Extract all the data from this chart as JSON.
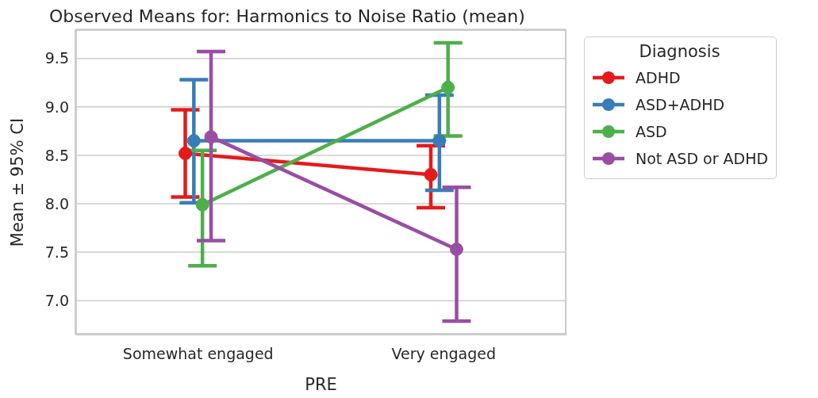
{
  "chart_data": {
    "type": "line",
    "title": "Observed Means for: Harmonics to Noise Ratio (mean)",
    "xlabel": "PRE",
    "ylabel": "Mean ± 95% CI",
    "legend_title": "Diagnosis",
    "categories": [
      "Somewhat engaged",
      "Very engaged"
    ],
    "series": [
      {
        "name": "ADHD",
        "color": "#e41a1c",
        "values": [
          8.52,
          8.3
        ],
        "errors": [
          [
            8.07,
            8.97
          ],
          [
            7.96,
            8.6
          ]
        ]
      },
      {
        "name": "ASD+ADHD",
        "color": "#377eb8",
        "values": [
          8.65,
          8.65
        ],
        "errors": [
          [
            8.01,
            9.28
          ],
          [
            8.14,
            9.12
          ]
        ]
      },
      {
        "name": "ASD",
        "color": "#4daf4a",
        "values": [
          7.99,
          9.2
        ],
        "errors": [
          [
            7.36,
            8.55
          ],
          [
            8.7,
            9.66
          ]
        ]
      },
      {
        "name": "Not ASD or ADHD",
        "color": "#984ea3",
        "values": [
          8.69,
          7.53
        ],
        "errors": [
          [
            7.62,
            9.57
          ],
          [
            6.79,
            8.17
          ]
        ]
      }
    ],
    "ylim": [
      6.65,
      9.8
    ],
    "yticks": [
      {
        "value": 7,
        "label": "7.0"
      },
      {
        "value": 7.5,
        "label": "7.5"
      },
      {
        "value": 8,
        "label": "8.0"
      },
      {
        "value": 8.5,
        "label": "8.5"
      },
      {
        "value": 9,
        "label": "9.0"
      },
      {
        "value": 9.5,
        "label": "9.5"
      }
    ],
    "grid": "y",
    "legend": "right",
    "marker": "circle",
    "line_style": "solid"
  }
}
